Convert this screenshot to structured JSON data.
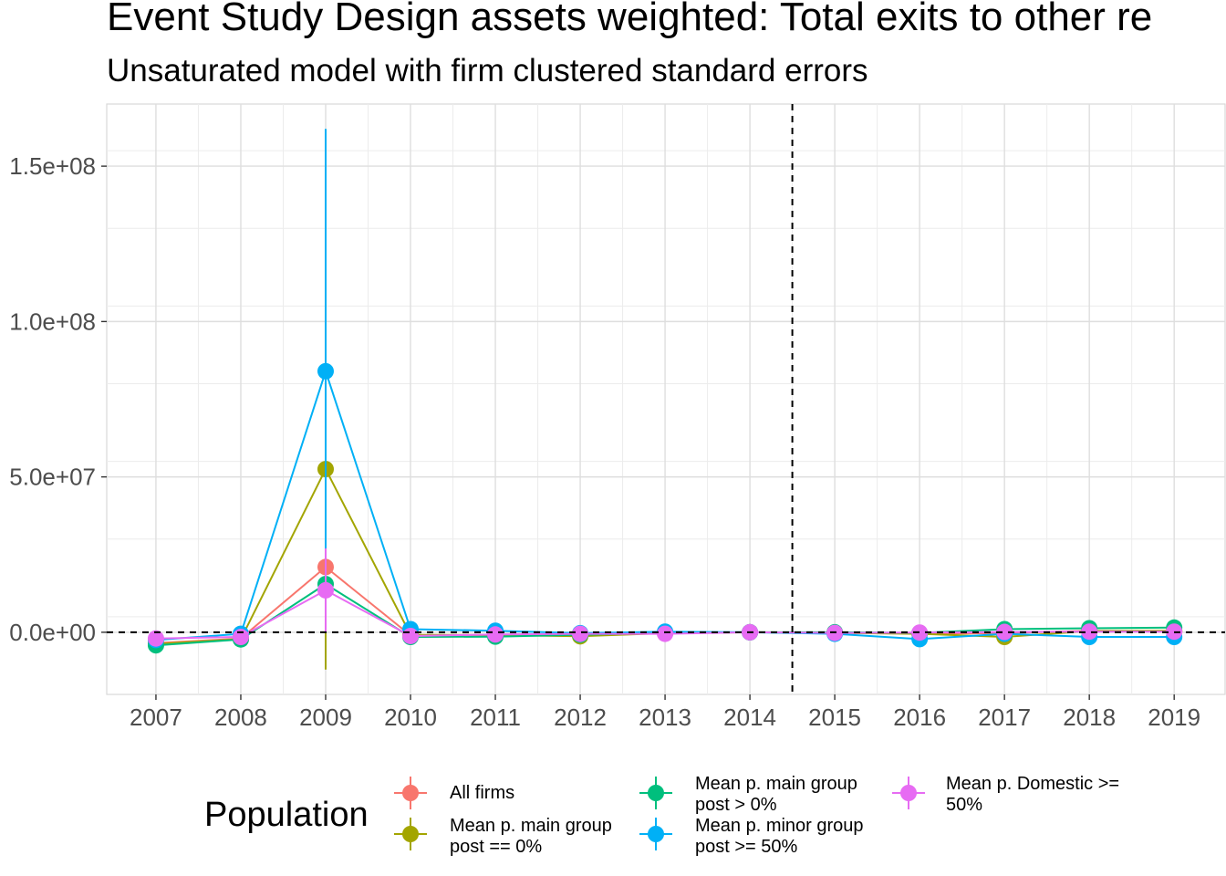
{
  "chart_data": {
    "type": "line",
    "title": "Event Study Design assets weighted: Total exits to other re",
    "subtitle": "Unsaturated model with firm clustered standard errors",
    "xlabel": "",
    "ylabel": "",
    "x": [
      2007,
      2008,
      2009,
      2010,
      2011,
      2012,
      2013,
      2014,
      2015,
      2016,
      2017,
      2018,
      2019
    ],
    "x_tick_labels": [
      "2007",
      "2008",
      "2009",
      "2010",
      "2011",
      "2012",
      "2013",
      "2014",
      "2015",
      "2016",
      "2017",
      "2018",
      "2019"
    ],
    "ylim": [
      -20000000,
      170000000
    ],
    "y_ticks": [
      0,
      50000000,
      100000000,
      150000000
    ],
    "y_tick_labels": [
      "0.0e+00",
      "5.0e+07",
      "1.0e+08",
      "1.5e+08"
    ],
    "reference_lines": {
      "y": 0,
      "x": 2014.5
    },
    "grid": true,
    "legend": {
      "title": "Population",
      "position": "bottom"
    },
    "series": [
      {
        "name": "All firms",
        "color": "#F8766D",
        "values": [
          -3500000,
          -2000000,
          21000000,
          -1000000,
          -800000,
          -500000,
          -200000,
          0,
          -100000,
          -400000,
          -300000,
          500000,
          300000
        ],
        "ci_low": [
          -4200000,
          -2600000,
          15000000,
          -1500000,
          -1300000,
          -900000,
          -500000,
          0,
          -500000,
          -900000,
          -900000,
          -200000,
          -400000
        ],
        "ci_high": [
          -2800000,
          -1400000,
          27000000,
          -500000,
          -300000,
          -100000,
          100000,
          0,
          300000,
          100000,
          300000,
          1200000,
          1000000
        ]
      },
      {
        "name": "Mean p. main group\npost == 0%",
        "color": "#A3A500",
        "values": [
          -3800000,
          -2200000,
          52500000,
          -800000,
          -900000,
          -1300000,
          -300000,
          0,
          -200000,
          -500000,
          -1500000,
          400000,
          500000
        ],
        "ci_low": [
          -4500000,
          -3000000,
          -12000000,
          -1600000,
          -1600000,
          -2000000,
          -800000,
          0,
          -700000,
          -1100000,
          -2400000,
          -400000,
          -300000
        ],
        "ci_high": [
          -3100000,
          -1400000,
          117000000,
          0,
          -200000,
          -600000,
          200000,
          0,
          300000,
          100000,
          -600000,
          1200000,
          1300000
        ]
      },
      {
        "name": "Mean p. main group\npost > 0%",
        "color": "#00BF7D",
        "values": [
          -4200000,
          -2300000,
          15500000,
          -1500000,
          -1400000,
          -800000,
          -200000,
          0,
          0,
          -200000,
          1000000,
          1300000,
          1500000
        ],
        "ci_low": [
          -5000000,
          -3000000,
          13000000,
          -2200000,
          -2000000,
          -1400000,
          -700000,
          0,
          -400000,
          -700000,
          400000,
          600000,
          800000
        ],
        "ci_high": [
          -3400000,
          -1600000,
          18000000,
          -800000,
          -800000,
          -200000,
          300000,
          0,
          400000,
          300000,
          1600000,
          2000000,
          2200000
        ]
      },
      {
        "name": "Mean p. minor group\npost >= 50%",
        "color": "#00B0F6",
        "values": [
          -2500000,
          -500000,
          84000000,
          1000000,
          500000,
          -300000,
          200000,
          0,
          -500000,
          -2200000,
          -500000,
          -1500000,
          -1500000
        ],
        "ci_low": [
          -3200000,
          -1200000,
          6000000,
          300000,
          -200000,
          -1000000,
          -400000,
          0,
          -1100000,
          -3000000,
          -1200000,
          -2300000,
          -2300000
        ],
        "ci_high": [
          -1800000,
          200000,
          162000000,
          1700000,
          1200000,
          400000,
          800000,
          0,
          100000,
          -1400000,
          200000,
          -700000,
          -700000
        ]
      },
      {
        "name": "Mean p. Domestic >=\n50%",
        "color": "#E76BF3",
        "values": [
          -2000000,
          -1500000,
          13500000,
          -1200000,
          -700000,
          -500000,
          -500000,
          0,
          -200000,
          -100000,
          100000,
          200000,
          200000
        ],
        "ci_low": [
          -2700000,
          -2200000,
          0,
          -1800000,
          -1300000,
          -1100000,
          -1000000,
          0,
          -700000,
          -600000,
          -400000,
          -400000,
          -400000
        ],
        "ci_high": [
          -1300000,
          -800000,
          27000000,
          -600000,
          -100000,
          100000,
          0,
          0,
          300000,
          400000,
          600000,
          800000,
          800000
        ]
      }
    ]
  }
}
